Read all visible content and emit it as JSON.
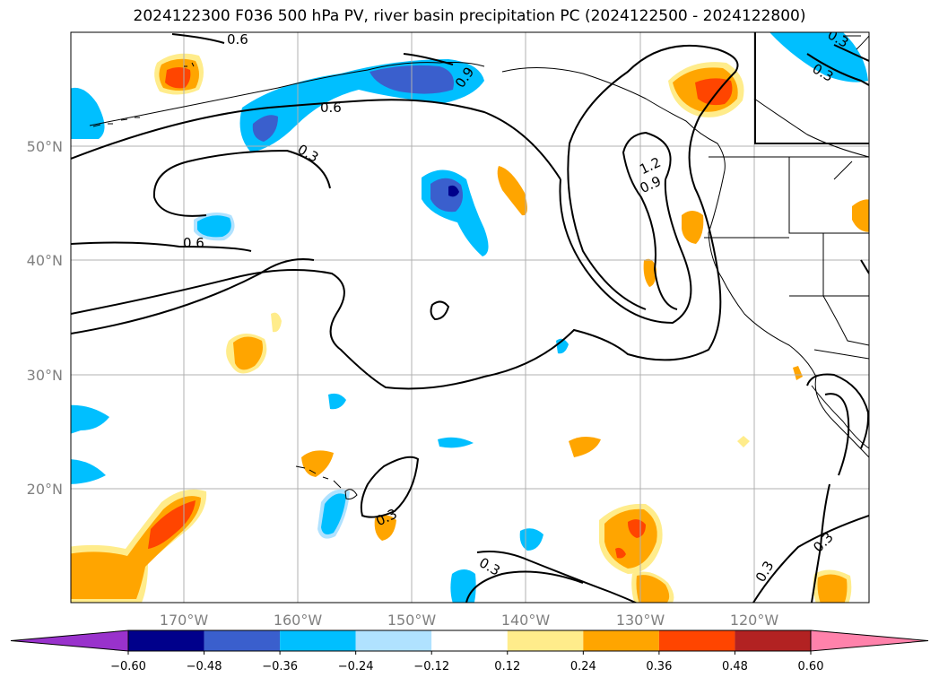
{
  "title": "2024122300 F036 500 hPa PV, river basin precipitation PC (2024122500 - 2024122800)",
  "map": {
    "lon_ticks": [
      "170°W",
      "160°W",
      "150°W",
      "140°W",
      "130°W",
      "120°W"
    ],
    "lat_ticks": [
      "50°N",
      "40°N",
      "30°N",
      "20°N"
    ],
    "contour_labels": [
      "0.6",
      "0.9",
      "0.6",
      "0.3",
      "0.6",
      "1.2",
      "0.9",
      "0.3",
      "0.3",
      "0.3",
      "0.3",
      "0.3",
      "0.3"
    ]
  },
  "colorbar": {
    "ticks": [
      "−0.60",
      "−0.48",
      "−0.36",
      "−0.24",
      "−0.12",
      "0.12",
      "0.24",
      "0.36",
      "0.48",
      "0.60"
    ],
    "colors": [
      "#9932cc",
      "#00008b",
      "#3a5fcd",
      "#00bfff",
      "#b0e2ff",
      "#ffffff",
      "#ffec8b",
      "#ffa500",
      "#ff4500",
      "#b22222",
      "#ff82ab"
    ]
  }
}
